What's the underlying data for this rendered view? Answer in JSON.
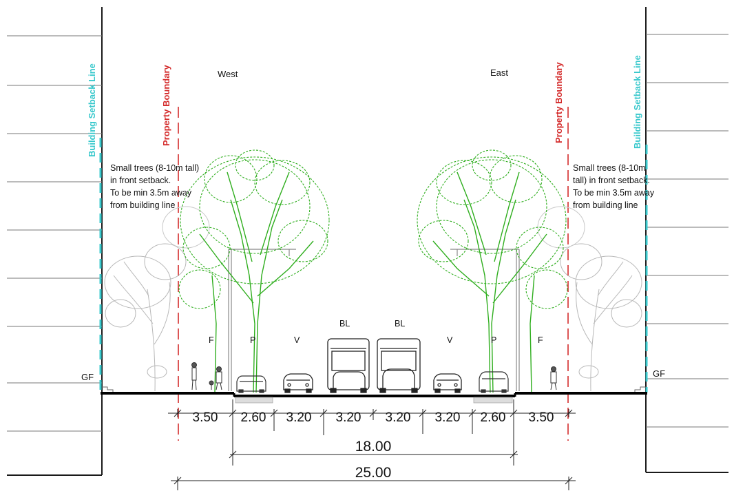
{
  "orientation": {
    "west": "West",
    "east": "East"
  },
  "vertical_labels": {
    "building_setback_line": "Building Setback Line",
    "property_boundary": "Property Boundary"
  },
  "notes": {
    "west": [
      "Small trees (8-10m tall)",
      "in front setback.",
      "To be min 3.5m away",
      "from building line"
    ],
    "east": [
      "Small trees (8-10m",
      "tall) in front setback.",
      "To be min 3.5m away",
      "from building line"
    ]
  },
  "level_label": "GF",
  "zones": [
    "F",
    "P",
    "V",
    "BL",
    "BL",
    "V",
    "P",
    "F"
  ],
  "segment_widths": [
    "3.50",
    "2.60",
    "3.20",
    "3.20",
    "3.20",
    "3.20",
    "2.60",
    "3.50"
  ],
  "totals": {
    "carriageway": "18.00",
    "overall": "25.00"
  },
  "colors": {
    "setback_line": "#38c8cc",
    "property_boundary": "#d42b2b",
    "tree_foliage": "#2fae1e",
    "ground": "#000000",
    "building": "#1a1a1a",
    "ghost_tree": "#b8b8b8"
  }
}
